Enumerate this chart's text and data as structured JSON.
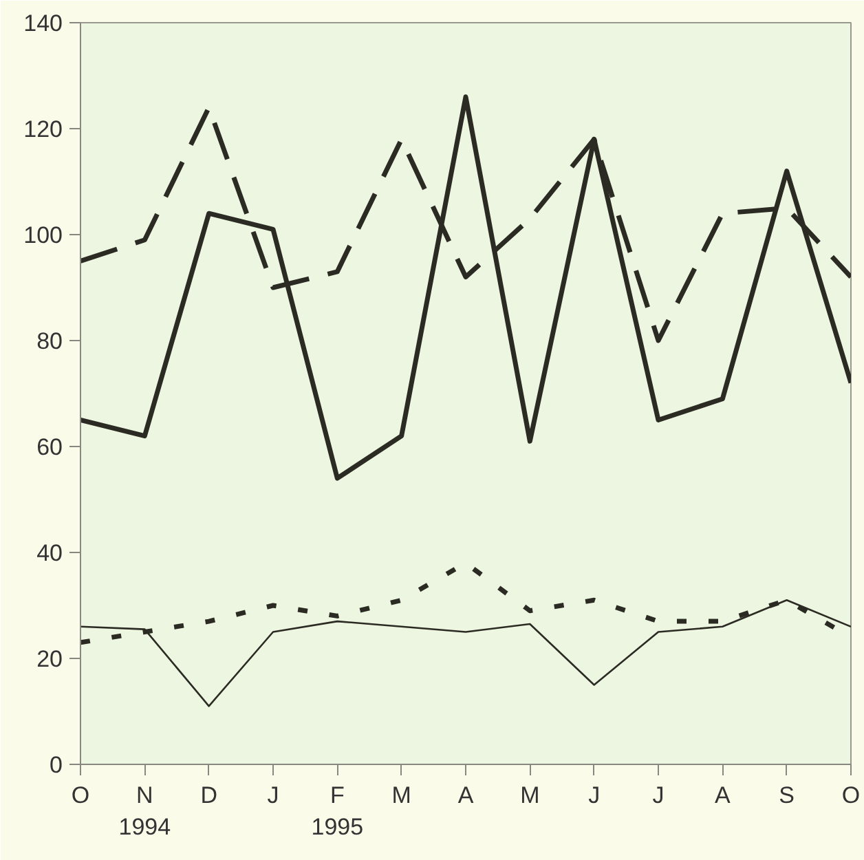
{
  "chart_data": {
    "type": "line",
    "categories": [
      "O",
      "N",
      "D",
      "J",
      "F",
      "M",
      "A",
      "M",
      "J",
      "J",
      "A",
      "S",
      "O"
    ],
    "series": [
      {
        "color": "#2b2b24",
        "line_style": "solid",
        "values": [
          65,
          62,
          104,
          101,
          54,
          62,
          126,
          61,
          118,
          65,
          69,
          112,
          72
        ]
      },
      {
        "color": "#2b2b24",
        "line_style": "dashed",
        "values": [
          95,
          99,
          124,
          90,
          93,
          118,
          92,
          103,
          118,
          80,
          104,
          105,
          92
        ]
      },
      {
        "color": "#2b2b24",
        "line_style": "dotted",
        "values": [
          23,
          25,
          27,
          30,
          28,
          31,
          38,
          29,
          31,
          27,
          27,
          31,
          24
        ]
      },
      {
        "color": "#2b2b24",
        "line_style": "solid",
        "values": [
          26,
          25.5,
          11,
          25,
          27,
          26,
          25,
          26.5,
          15,
          25,
          26,
          31,
          26
        ]
      }
    ],
    "ylim": [
      0,
      140
    ],
    "yticks": [
      0,
      20,
      40,
      60,
      80,
      100,
      120,
      140
    ],
    "grid": false,
    "marker": "none",
    "annotations": [
      "1994",
      "1995"
    ]
  }
}
